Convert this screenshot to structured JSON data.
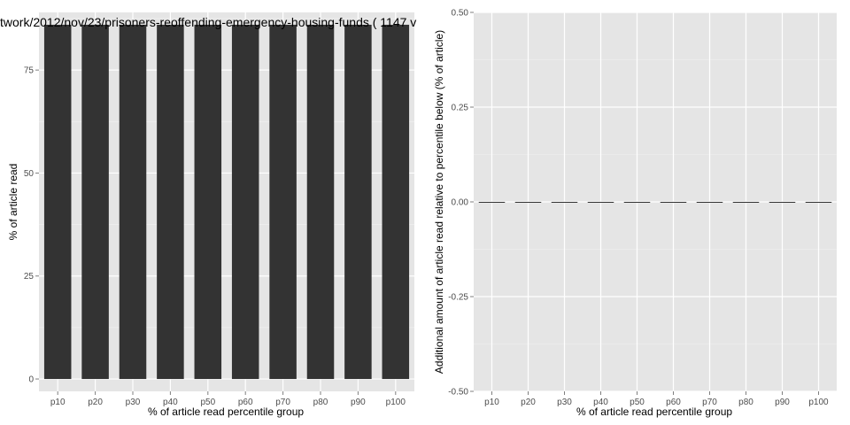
{
  "chart_data": [
    {
      "type": "bar",
      "title": "twork/2012/nov/23/prisoners-reoffending-emergency-housing-funds ( 1147 v",
      "xlabel": "% of article read percentile group",
      "ylabel": "% of article read",
      "categories": [
        "p10",
        "p20",
        "p30",
        "p40",
        "p50",
        "p60",
        "p70",
        "p80",
        "p90",
        "p100"
      ],
      "values": [
        86,
        86,
        86,
        86,
        86,
        86,
        86,
        86,
        86,
        86
      ],
      "ylim": [
        -3,
        89
      ],
      "yticks": [
        0,
        25,
        50,
        75
      ],
      "ytick_labels": [
        "0",
        "25",
        "50",
        "75"
      ],
      "grid": true,
      "bar_color": "#333333",
      "panel_color": "#e5e5e5"
    },
    {
      "type": "bar",
      "title": "",
      "xlabel": "% of article read percentile group",
      "ylabel": "Additional amount of article read relative to percentile below (% of article)",
      "categories": [
        "p10",
        "p20",
        "p30",
        "p40",
        "p50",
        "p60",
        "p70",
        "p80",
        "p90",
        "p100"
      ],
      "values": [
        0,
        0,
        0,
        0,
        0,
        0,
        0,
        0,
        0,
        0
      ],
      "ylim": [
        -0.5,
        0.5
      ],
      "yticks": [
        -0.5,
        -0.25,
        0,
        0.25,
        0.5
      ],
      "ytick_labels": [
        "-0.50",
        "-0.25",
        "0.00",
        "0.25",
        "0.50"
      ],
      "grid": true,
      "bar_color": "#333333",
      "panel_color": "#e5e5e5"
    }
  ]
}
